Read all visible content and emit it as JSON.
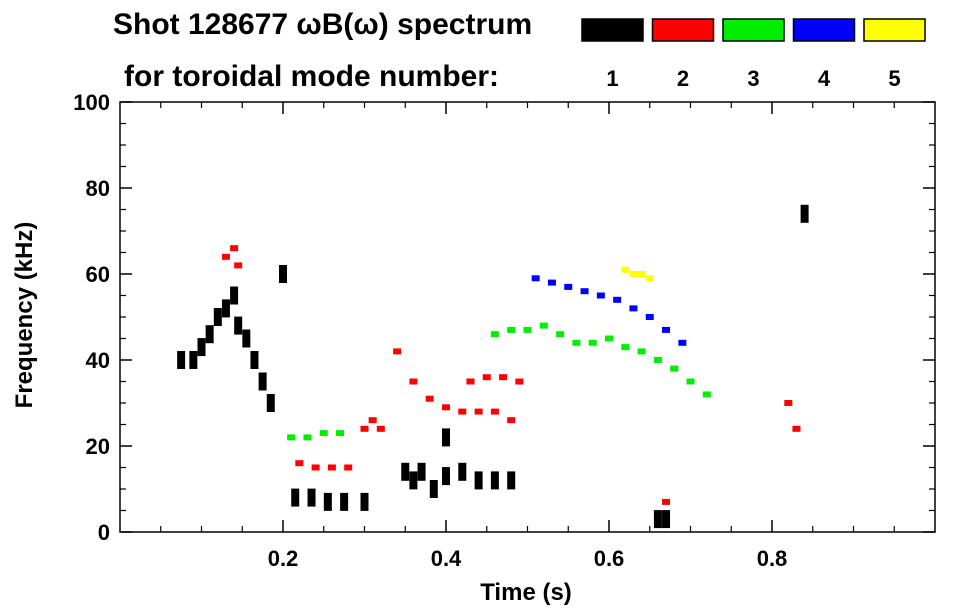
{
  "chart_data": {
    "type": "scatter",
    "title_line1": "Shot 128677 ωB(ω) spectrum",
    "title_line2": "for toroidal mode number:",
    "xlabel": "Time (s)",
    "ylabel": "Frequency (kHz)",
    "xlim": [
      0.0,
      1.0
    ],
    "ylim": [
      0,
      100
    ],
    "x_ticks": [
      0.2,
      0.4,
      0.6,
      0.8
    ],
    "y_ticks": [
      0,
      20,
      40,
      60,
      80,
      100
    ],
    "legend": [
      {
        "label": "1",
        "color": "#000000"
      },
      {
        "label": "2",
        "color": "#ff0000"
      },
      {
        "label": "3",
        "color": "#00ee00"
      },
      {
        "label": "4",
        "color": "#0000ff"
      },
      {
        "label": "5",
        "color": "#ffff00"
      }
    ],
    "series": [
      {
        "name": "n=1",
        "color": "#000000",
        "streaks": [
          [
            0.075,
            40
          ],
          [
            0.09,
            40
          ],
          [
            0.1,
            43
          ],
          [
            0.11,
            46
          ],
          [
            0.12,
            50
          ],
          [
            0.13,
            52
          ],
          [
            0.14,
            55
          ],
          [
            0.145,
            48
          ],
          [
            0.155,
            45
          ],
          [
            0.165,
            40
          ],
          [
            0.175,
            35
          ],
          [
            0.185,
            30
          ],
          [
            0.2,
            60
          ],
          [
            0.215,
            8
          ],
          [
            0.235,
            8
          ],
          [
            0.255,
            7
          ],
          [
            0.275,
            7
          ],
          [
            0.3,
            7
          ],
          [
            0.35,
            14
          ],
          [
            0.36,
            12
          ],
          [
            0.37,
            14
          ],
          [
            0.385,
            10
          ],
          [
            0.4,
            13
          ],
          [
            0.42,
            14
          ],
          [
            0.44,
            12
          ],
          [
            0.46,
            12
          ],
          [
            0.48,
            12
          ],
          [
            0.4,
            22
          ],
          [
            0.66,
            3
          ],
          [
            0.67,
            3
          ],
          [
            0.84,
            74
          ]
        ]
      },
      {
        "name": "n=2",
        "color": "#ff0000",
        "streaks": [
          [
            0.13,
            64
          ],
          [
            0.14,
            66
          ],
          [
            0.145,
            62
          ],
          [
            0.22,
            16
          ],
          [
            0.24,
            15
          ],
          [
            0.26,
            15
          ],
          [
            0.28,
            15
          ],
          [
            0.3,
            24
          ],
          [
            0.31,
            26
          ],
          [
            0.32,
            24
          ],
          [
            0.34,
            42
          ],
          [
            0.36,
            35
          ],
          [
            0.38,
            31
          ],
          [
            0.4,
            29
          ],
          [
            0.42,
            28
          ],
          [
            0.44,
            28
          ],
          [
            0.46,
            28
          ],
          [
            0.48,
            26
          ],
          [
            0.43,
            35
          ],
          [
            0.45,
            36
          ],
          [
            0.47,
            36
          ],
          [
            0.49,
            35
          ],
          [
            0.67,
            7
          ],
          [
            0.82,
            30
          ],
          [
            0.83,
            24
          ]
        ]
      },
      {
        "name": "n=3",
        "color": "#00ee00",
        "streaks": [
          [
            0.21,
            22
          ],
          [
            0.23,
            22
          ],
          [
            0.25,
            23
          ],
          [
            0.27,
            23
          ],
          [
            0.46,
            46
          ],
          [
            0.48,
            47
          ],
          [
            0.5,
            47
          ],
          [
            0.52,
            48
          ],
          [
            0.54,
            46
          ],
          [
            0.56,
            44
          ],
          [
            0.58,
            44
          ],
          [
            0.6,
            45
          ],
          [
            0.62,
            43
          ],
          [
            0.64,
            42
          ],
          [
            0.66,
            40
          ],
          [
            0.68,
            38
          ],
          [
            0.7,
            35
          ],
          [
            0.72,
            32
          ]
        ]
      },
      {
        "name": "n=4",
        "color": "#0000ff",
        "streaks": [
          [
            0.51,
            59
          ],
          [
            0.53,
            58
          ],
          [
            0.55,
            57
          ],
          [
            0.57,
            56
          ],
          [
            0.59,
            55
          ],
          [
            0.61,
            54
          ],
          [
            0.63,
            52
          ],
          [
            0.65,
            50
          ],
          [
            0.67,
            47
          ],
          [
            0.69,
            44
          ]
        ]
      },
      {
        "name": "n=5",
        "color": "#ffff00",
        "streaks": [
          [
            0.62,
            61
          ],
          [
            0.63,
            60
          ],
          [
            0.64,
            60
          ],
          [
            0.65,
            59
          ]
        ]
      }
    ]
  }
}
